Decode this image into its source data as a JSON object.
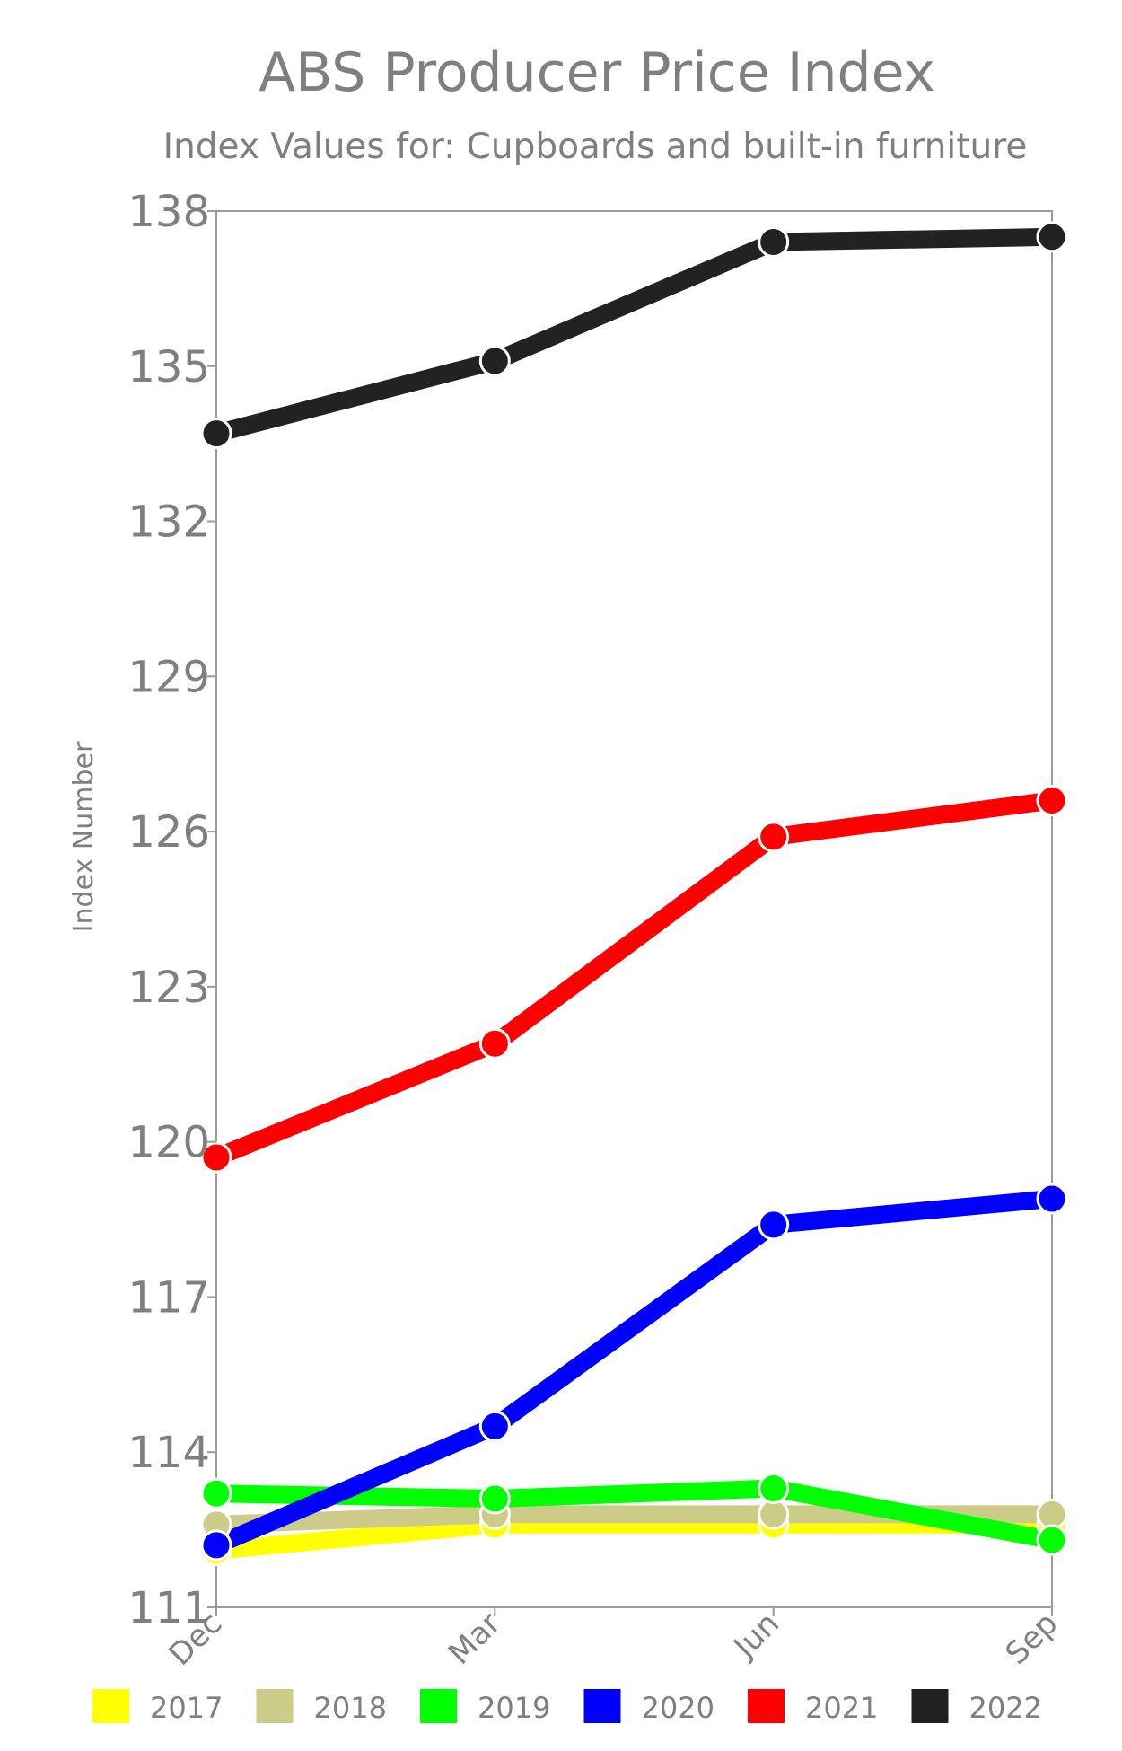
{
  "chart_data": {
    "type": "line",
    "title": "ABS Producer Price Index",
    "subtitle": "Index Values for: Cupboards and built-in furniture",
    "ylabel": "Index Number",
    "xlabel": "",
    "categories": [
      "Dec",
      "Mar",
      "Jun",
      "Sep"
    ],
    "ylim": [
      111,
      138
    ],
    "yticks": [
      111,
      114,
      117,
      120,
      123,
      126,
      129,
      132,
      135,
      138
    ],
    "grid": false,
    "legend_position": "bottom",
    "series": [
      {
        "name": "2017",
        "color": "#ffff00",
        "values": [
          112.1,
          112.6,
          112.6,
          112.6
        ]
      },
      {
        "name": "2018",
        "color": "#cccc88",
        "values": [
          112.6,
          112.8,
          112.8,
          112.8
        ]
      },
      {
        "name": "2019",
        "color": "#00ff00",
        "values": [
          113.2,
          113.1,
          113.3,
          112.3
        ]
      },
      {
        "name": "2020",
        "color": "#0000ff",
        "values": [
          112.2,
          114.5,
          118.4,
          118.9
        ]
      },
      {
        "name": "2021",
        "color": "#ff0000",
        "values": [
          119.7,
          121.9,
          125.9,
          126.6
        ]
      },
      {
        "name": "2022",
        "color": "#222222",
        "values": [
          133.7,
          135.1,
          137.4,
          137.5
        ]
      }
    ]
  }
}
